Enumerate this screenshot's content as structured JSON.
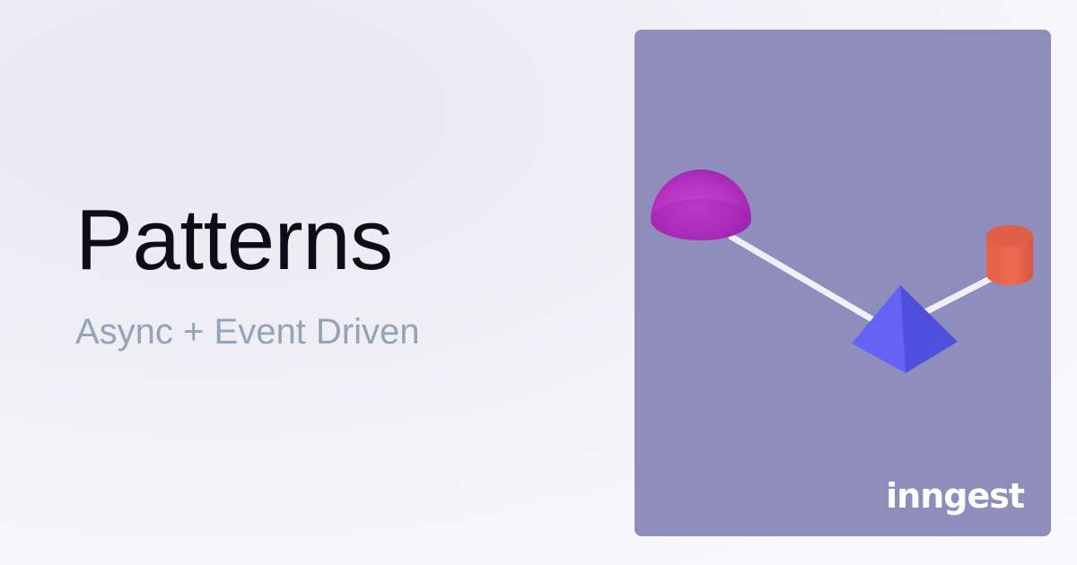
{
  "hero": {
    "title": "Patterns",
    "subtitle": "Async + Event Driven"
  },
  "illustration": {
    "background_color": "#8f8dbc",
    "shapes": [
      {
        "name": "dome",
        "color": "#b834c4"
      },
      {
        "name": "pyramid",
        "color": "#5e5ef0"
      },
      {
        "name": "cylinder",
        "color": "#e8654d"
      }
    ],
    "connector_color": "#e9e9f0"
  },
  "brand": {
    "logo_text": "inngest"
  }
}
